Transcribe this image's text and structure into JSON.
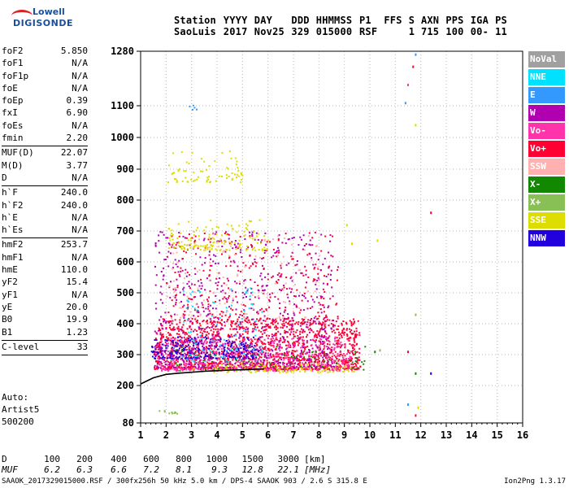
{
  "logo": {
    "line1": "Lowell",
    "line2": "DIGISONDE"
  },
  "header": {
    "labels": [
      "Station",
      "YYYY",
      "DAY",
      "DDD",
      "HHMMSS",
      "P1",
      "FFS",
      "S",
      "AXN",
      "PPS",
      "IGA",
      "PS"
    ],
    "values": [
      "SaoLuis",
      "2017",
      "Nov25",
      "329",
      "015000",
      "RSF",
      "",
      "1",
      "715",
      "100",
      "00-",
      "11"
    ]
  },
  "params": [
    {
      "name": "foF2",
      "value": "5.850"
    },
    {
      "name": "foF1",
      "value": "N/A"
    },
    {
      "name": "foF1p",
      "value": "N/A"
    },
    {
      "name": "foE",
      "value": "N/A"
    },
    {
      "name": "foEp",
      "value": "0.39"
    },
    {
      "name": "fxI",
      "value": "6.90"
    },
    {
      "name": "foEs",
      "value": "N/A"
    },
    {
      "name": "fmin",
      "value": "2.20"
    },
    {
      "sep": true
    },
    {
      "name": "MUF(D)",
      "value": "22.07"
    },
    {
      "name": "M(D)",
      "value": "3.77"
    },
    {
      "name": "D",
      "value": "N/A"
    },
    {
      "sep": true
    },
    {
      "name": "h`F",
      "value": "240.0"
    },
    {
      "name": "h`F2",
      "value": "240.0"
    },
    {
      "name": "h`E",
      "value": "N/A"
    },
    {
      "name": "h`Es",
      "value": "N/A"
    },
    {
      "sep": true
    },
    {
      "name": "hmF2",
      "value": "253.7"
    },
    {
      "name": "hmF1",
      "value": "N/A"
    },
    {
      "name": "hmE",
      "value": "110.0"
    },
    {
      "name": "yF2",
      "value": "15.4"
    },
    {
      "name": "yF1",
      "value": "N/A"
    },
    {
      "name": "yE",
      "value": "20.0"
    },
    {
      "name": "B0",
      "value": "19.9"
    },
    {
      "name": "B1",
      "value": "1.23"
    },
    {
      "sep": true
    },
    {
      "name": "C-level",
      "value": "33"
    },
    {
      "sep": true
    }
  ],
  "auto": {
    "line1": "Auto:",
    "line2": "Artist5",
    "line3": "500200"
  },
  "legend": [
    {
      "label": "NoVal",
      "color": "#a0a0a0"
    },
    {
      "label": "NNE",
      "color": "#00e0ff"
    },
    {
      "label": "E",
      "color": "#3399ff"
    },
    {
      "label": "W",
      "color": "#b000b0"
    },
    {
      "label": "Vo-",
      "color": "#ff33aa"
    },
    {
      "label": "Vo+",
      "color": "#ff0033"
    },
    {
      "label": "SSW",
      "color": "#ffb0b0"
    },
    {
      "label": "X-",
      "color": "#118800"
    },
    {
      "label": "X+",
      "color": "#88c055"
    },
    {
      "label": "SSE",
      "color": "#dddd00"
    },
    {
      "label": "NNW",
      "color": "#2200dd"
    }
  ],
  "muf_table": {
    "d_label": "D",
    "d_values": [
      "100",
      "200",
      "400",
      "600",
      "800",
      "1000",
      "1500",
      "3000"
    ],
    "d_unit": "[km]",
    "muf_label": "MUF",
    "muf_values": [
      "6.2",
      "6.3",
      "6.6",
      "7.2",
      "8.1",
      "9.3",
      "12.8",
      "22.1"
    ],
    "muf_unit": "[MHz]"
  },
  "footer": {
    "left": "SAAOK_2017329015000.RSF / 300fx256h 50 kHz 5.0 km / DPS-4 SAAOK 903 / 2.6 S 315.8 E",
    "right": "Ion2Png 1.3.17"
  },
  "chart_data": {
    "type": "scatter",
    "xlim": [
      1,
      16
    ],
    "ylim": [
      80,
      1280
    ],
    "x_ticks": [
      "1",
      "2",
      "3",
      "4",
      "5",
      "6",
      "7",
      "8",
      "9",
      "10",
      "11",
      "12",
      "13",
      "14",
      "15",
      "16"
    ],
    "y_ticks": [
      "80",
      "200",
      "300",
      "400",
      "500",
      "600",
      "700",
      "800",
      "900",
      "1000",
      "1100",
      "1280"
    ],
    "y_tick_values": [
      80,
      200,
      300,
      400,
      500,
      600,
      700,
      800,
      900,
      1000,
      1100,
      1280
    ],
    "grid": true,
    "grid_color": "#b8b8b8",
    "trace": {
      "name": "",
      "color": "#000000",
      "x": [
        1.0,
        1.5,
        2.0,
        2.5,
        3.0,
        3.5,
        4.0,
        4.5,
        5.0,
        5.5,
        5.85
      ],
      "y": [
        205,
        225,
        236,
        240,
        243,
        246,
        248,
        250,
        251,
        253,
        254
      ]
    },
    "echo_regions": [
      {
        "color": "#ff0033",
        "x0": 1.5,
        "x1": 9.6,
        "y0": 255,
        "y1": 420,
        "density": 0.55
      },
      {
        "color": "#ff33aa",
        "x0": 1.6,
        "x1": 9.3,
        "y0": 250,
        "y1": 360,
        "density": 0.35
      },
      {
        "color": "#2200dd",
        "x0": 1.4,
        "x1": 5.6,
        "y0": 290,
        "y1": 360,
        "density": 0.45
      },
      {
        "color": "#b000b0",
        "x0": 1.5,
        "x1": 8.6,
        "y0": 260,
        "y1": 700,
        "density": 0.12
      },
      {
        "color": "#ff0033",
        "x0": 2.0,
        "x1": 8.8,
        "y0": 400,
        "y1": 700,
        "density": 0.08
      },
      {
        "color": "#dddd00",
        "x0": 2.0,
        "x1": 6.0,
        "y0": 640,
        "y1": 740,
        "density": 0.18
      },
      {
        "color": "#dddd00",
        "x0": 2.0,
        "x1": 5.0,
        "y0": 860,
        "y1": 960,
        "density": 0.12
      },
      {
        "color": "#dddd00",
        "x0": 3.0,
        "x1": 9.5,
        "y0": 245,
        "y1": 275,
        "density": 0.3
      },
      {
        "color": "#88c055",
        "x0": 1.7,
        "x1": 2.6,
        "y0": 112,
        "y1": 122,
        "density": 0.6
      },
      {
        "color": "#118800",
        "x0": 2.2,
        "x1": 9.8,
        "y0": 250,
        "y1": 330,
        "density": 0.06
      },
      {
        "color": "#3399ff",
        "x0": 2.8,
        "x1": 3.3,
        "y0": 1090,
        "y1": 1110,
        "density": 0.3
      },
      {
        "color": "#00e0ff",
        "x0": 2.0,
        "x1": 5.8,
        "y0": 280,
        "y1": 520,
        "density": 0.05
      },
      {
        "color": "#ffb0b0",
        "x0": 2.0,
        "x1": 8.0,
        "y0": 420,
        "y1": 700,
        "density": 0.04
      }
    ],
    "echo_points": [
      {
        "x": 11.8,
        "y": 1270,
        "color": "#3399ff"
      },
      {
        "x": 11.7,
        "y": 1230,
        "color": "#ff0033"
      },
      {
        "x": 11.5,
        "y": 1170,
        "color": "#ff33aa"
      },
      {
        "x": 11.4,
        "y": 1110,
        "color": "#3399ff"
      },
      {
        "x": 11.8,
        "y": 1040,
        "color": "#dddd00"
      },
      {
        "x": 12.4,
        "y": 760,
        "color": "#ff0033"
      },
      {
        "x": 9.1,
        "y": 720,
        "color": "#dddd00"
      },
      {
        "x": 9.3,
        "y": 660,
        "color": "#dddd00"
      },
      {
        "x": 10.3,
        "y": 670,
        "color": "#dddd00"
      },
      {
        "x": 11.8,
        "y": 430,
        "color": "#88c055"
      },
      {
        "x": 11.5,
        "y": 310,
        "color": "#ff0033"
      },
      {
        "x": 11.8,
        "y": 240,
        "color": "#118800"
      },
      {
        "x": 12.4,
        "y": 240,
        "color": "#2200dd"
      },
      {
        "x": 11.5,
        "y": 140,
        "color": "#3399ff"
      },
      {
        "x": 11.9,
        "y": 130,
        "color": "#dddd00"
      },
      {
        "x": 11.8,
        "y": 105,
        "color": "#ff0033"
      },
      {
        "x": 10.2,
        "y": 310,
        "color": "#118800"
      },
      {
        "x": 10.4,
        "y": 315,
        "color": "#88c055"
      }
    ]
  }
}
